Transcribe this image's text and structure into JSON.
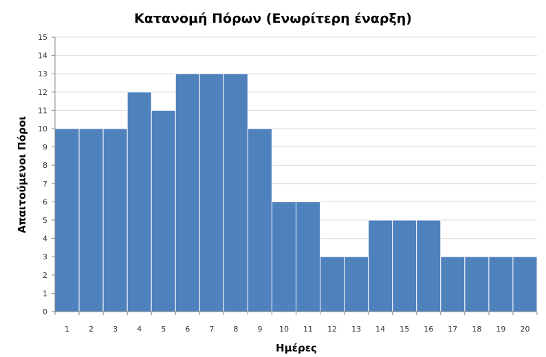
{
  "chart_data": {
    "type": "bar",
    "title": "Κατανομή Πόρων (Ενωρίτερη έναρξη)",
    "xlabel": "Ημέρες",
    "ylabel": "Απαιτούμενοι Πόροι",
    "categories": [
      "1",
      "2",
      "3",
      "4",
      "5",
      "6",
      "7",
      "8",
      "9",
      "10",
      "11",
      "12",
      "13",
      "14",
      "15",
      "16",
      "17",
      "18",
      "19",
      "20"
    ],
    "values": [
      10,
      10,
      10,
      12,
      11,
      13,
      13,
      13,
      10,
      6,
      6,
      3,
      3,
      5,
      5,
      5,
      3,
      3,
      3,
      3
    ],
    "ylim": [
      0,
      15
    ],
    "yticks": [
      "0",
      "1",
      "2",
      "3",
      "4",
      "5",
      "6",
      "7",
      "8",
      "9",
      "10",
      "11",
      "12",
      "13",
      "14",
      "15"
    ],
    "grid": true,
    "legend": "none",
    "bar_color": "#4f81bd"
  }
}
